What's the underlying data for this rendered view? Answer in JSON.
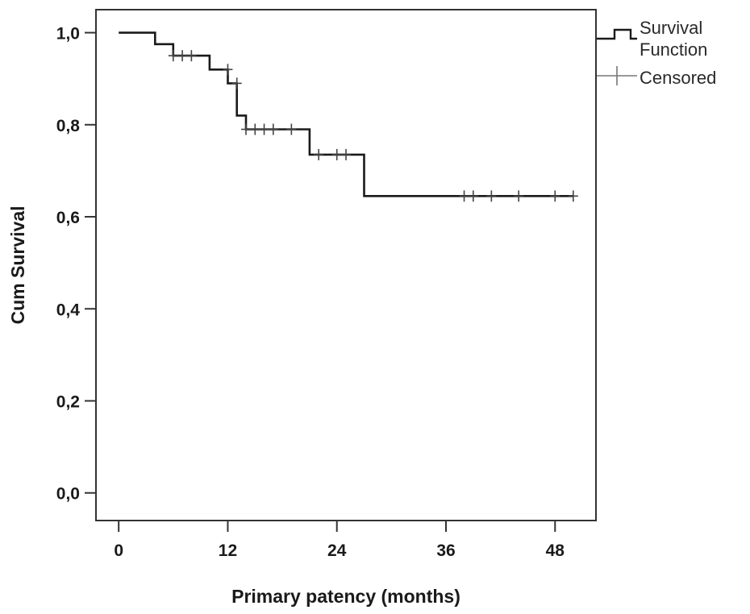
{
  "chart_data": {
    "type": "line",
    "subtype": "kaplan-meier",
    "title": "",
    "xlabel": "Primary patency (months)",
    "ylabel": "Cum Survival",
    "xlim": [
      -2.5,
      52.5
    ],
    "ylim": [
      -0.06,
      1.05
    ],
    "x_ticks": [
      0,
      12,
      24,
      36,
      48
    ],
    "x_tick_labels": [
      "0",
      "12",
      "24",
      "36",
      "48"
    ],
    "y_ticks": [
      0.0,
      0.2,
      0.4,
      0.6,
      0.8,
      1.0
    ],
    "y_tick_labels": [
      "0,0",
      "0,2",
      "0,4",
      "0,6",
      "0,8",
      "1,0"
    ],
    "grid": false,
    "legend_position": "outside-top-right",
    "legend": [
      {
        "label_line1": "Survival",
        "label_line2": "Function",
        "marker": "step-line"
      },
      {
        "label": "Censored",
        "marker": "plus"
      }
    ],
    "line_color": "#1a1a1a",
    "series": [
      {
        "name": "Survival Function",
        "steps": [
          {
            "x": 0,
            "y": 1.0
          },
          {
            "x": 4,
            "y": 0.975
          },
          {
            "x": 6,
            "y": 0.95
          },
          {
            "x": 10,
            "y": 0.92
          },
          {
            "x": 12,
            "y": 0.89
          },
          {
            "x": 13,
            "y": 0.82
          },
          {
            "x": 14,
            "y": 0.79
          },
          {
            "x": 21,
            "y": 0.735
          },
          {
            "x": 27,
            "y": 0.645
          }
        ],
        "end_x": 50
      },
      {
        "name": "Censored",
        "points": [
          {
            "x": 6,
            "y": 0.95
          },
          {
            "x": 7,
            "y": 0.95
          },
          {
            "x": 8,
            "y": 0.95
          },
          {
            "x": 12,
            "y": 0.92
          },
          {
            "x": 13,
            "y": 0.89
          },
          {
            "x": 14,
            "y": 0.79
          },
          {
            "x": 15,
            "y": 0.79
          },
          {
            "x": 16,
            "y": 0.79
          },
          {
            "x": 17,
            "y": 0.79
          },
          {
            "x": 19,
            "y": 0.79
          },
          {
            "x": 22,
            "y": 0.735
          },
          {
            "x": 24,
            "y": 0.735
          },
          {
            "x": 25,
            "y": 0.735
          },
          {
            "x": 38,
            "y": 0.645
          },
          {
            "x": 39,
            "y": 0.645
          },
          {
            "x": 41,
            "y": 0.645
          },
          {
            "x": 44,
            "y": 0.645
          },
          {
            "x": 48,
            "y": 0.645
          },
          {
            "x": 50,
            "y": 0.645
          }
        ]
      }
    ]
  }
}
